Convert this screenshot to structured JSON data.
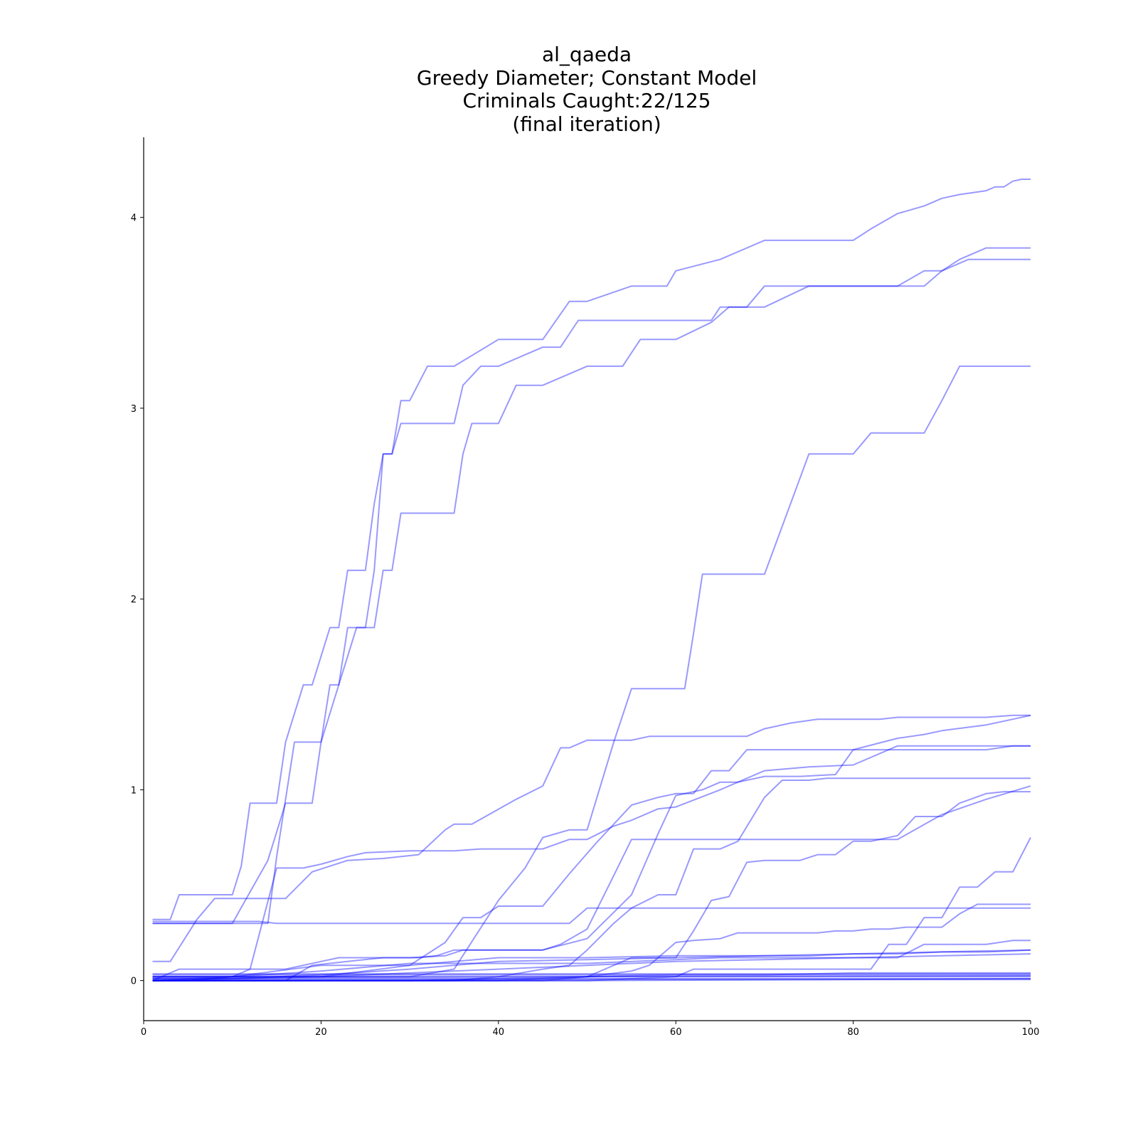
{
  "chart_data": {
    "type": "line",
    "title_lines": [
      "al_qaeda",
      "Greedy Diameter; Constant Model",
      "Criminals Caught:22/125",
      "(final iteration)"
    ],
    "xlim": [
      0,
      100
    ],
    "ylim": [
      -0.21,
      4.42
    ],
    "x_ticks": [
      0,
      20,
      40,
      60,
      80,
      100
    ],
    "y_ticks": [
      0,
      1,
      2,
      3,
      4
    ],
    "grid": false,
    "legend": "none",
    "line_color": "#0000ff",
    "line_opacity": 0.4,
    "series": [
      {
        "x": [
          1,
          3,
          4,
          10,
          11,
          12,
          14,
          15,
          16,
          18,
          19,
          21,
          22,
          23,
          25,
          26,
          27,
          28,
          29,
          30,
          32,
          35,
          40,
          45,
          48,
          50,
          55,
          57,
          59,
          60,
          65,
          67,
          70,
          75,
          80,
          82,
          85,
          88,
          90,
          92,
          95,
          96,
          97,
          98,
          99,
          100
        ],
        "y": [
          0.32,
          0.32,
          0.45,
          0.45,
          0.6,
          0.93,
          0.93,
          0.93,
          1.25,
          1.55,
          1.55,
          1.85,
          1.85,
          2.15,
          2.15,
          2.5,
          2.76,
          2.76,
          3.04,
          3.04,
          3.22,
          3.22,
          3.36,
          3.36,
          3.56,
          3.56,
          3.64,
          3.64,
          3.64,
          3.72,
          3.78,
          3.82,
          3.88,
          3.88,
          3.88,
          3.94,
          4.02,
          4.06,
          4.1,
          4.12,
          4.14,
          4.16,
          4.16,
          4.19,
          4.2,
          4.2
        ]
      },
      {
        "x": [
          1,
          10,
          14,
          16,
          19,
          20,
          21,
          22,
          23,
          24,
          25,
          26,
          27,
          28,
          29,
          30,
          35,
          36,
          38,
          40,
          45,
          47,
          49,
          55,
          60,
          64,
          65,
          70,
          75,
          80,
          85,
          88,
          90,
          93,
          96,
          97,
          98,
          100
        ],
        "y": [
          0.3,
          0.3,
          0.63,
          0.93,
          0.93,
          1.25,
          1.55,
          1.55,
          1.85,
          1.85,
          1.85,
          2.15,
          2.76,
          2.76,
          2.92,
          2.92,
          2.92,
          3.12,
          3.22,
          3.22,
          3.32,
          3.32,
          3.46,
          3.46,
          3.46,
          3.46,
          3.53,
          3.53,
          3.64,
          3.64,
          3.64,
          3.72,
          3.72,
          3.78,
          3.78,
          3.78,
          3.78,
          3.78
        ]
      },
      {
        "x": [
          1,
          5,
          12,
          14,
          15,
          17,
          18,
          20,
          22,
          24,
          26,
          27,
          28,
          29,
          30,
          35,
          36,
          37,
          40,
          42,
          45,
          50,
          54,
          56,
          60,
          64,
          66,
          68,
          70,
          73,
          76,
          80,
          82,
          85,
          88,
          90,
          92,
          95,
          100
        ],
        "y": [
          0.3,
          0.3,
          0.3,
          0.3,
          0.65,
          1.25,
          1.25,
          1.25,
          1.55,
          1.85,
          1.85,
          2.15,
          2.15,
          2.45,
          2.45,
          2.45,
          2.76,
          2.92,
          2.92,
          3.12,
          3.12,
          3.22,
          3.22,
          3.36,
          3.36,
          3.45,
          3.53,
          3.53,
          3.64,
          3.64,
          3.64,
          3.64,
          3.64,
          3.64,
          3.64,
          3.72,
          3.78,
          3.84,
          3.84
        ]
      },
      {
        "x": [
          1,
          10,
          13,
          15,
          20,
          22,
          28,
          30,
          35,
          40,
          45,
          47,
          48,
          50,
          52,
          53,
          55,
          60,
          62,
          63,
          65,
          70,
          75,
          78,
          80,
          83,
          84,
          86,
          89,
          91,
          92,
          95,
          97,
          99,
          100
        ],
        "y": [
          0.31,
          0.31,
          0.31,
          0.3,
          0.3,
          0.3,
          0.3,
          0.3,
          0.3,
          0.3,
          0.3,
          0.3,
          0.3,
          0.38,
          0.38,
          0.38,
          0.38,
          0.38,
          0.38,
          0.38,
          0.38,
          0.38,
          0.38,
          0.38,
          0.38,
          0.38,
          0.38,
          0.38,
          0.38,
          0.38,
          0.38,
          0.38,
          0.38,
          0.38,
          0.38
        ]
      },
      {
        "x": [
          1,
          20,
          30,
          35,
          40,
          43,
          45,
          48,
          50,
          53,
          55,
          60,
          61,
          62,
          63,
          65,
          66,
          67,
          70,
          75,
          80,
          82,
          84,
          86,
          88,
          90,
          92,
          95,
          100
        ],
        "y": [
          0.02,
          0.02,
          0.02,
          0.06,
          0.42,
          0.59,
          0.75,
          0.79,
          0.79,
          1.25,
          1.53,
          1.53,
          1.53,
          1.82,
          2.13,
          2.13,
          2.13,
          2.13,
          2.13,
          2.76,
          2.76,
          2.87,
          2.87,
          2.87,
          2.87,
          3.04,
          3.22,
          3.22,
          3.22
        ]
      },
      {
        "x": [
          1,
          3,
          6,
          8,
          12,
          16,
          19,
          23,
          27,
          31,
          34,
          35,
          37,
          42,
          45,
          47,
          48,
          50,
          55,
          57,
          60,
          62,
          64,
          68,
          70,
          73,
          76,
          80,
          83,
          85,
          87,
          90,
          95,
          98,
          100
        ],
        "y": [
          0.1,
          0.1,
          0.32,
          0.43,
          0.43,
          0.43,
          0.57,
          0.63,
          0.64,
          0.66,
          0.79,
          0.82,
          0.82,
          0.95,
          1.02,
          1.22,
          1.22,
          1.26,
          1.26,
          1.28,
          1.28,
          1.28,
          1.28,
          1.28,
          1.32,
          1.35,
          1.37,
          1.37,
          1.37,
          1.38,
          1.38,
          1.38,
          1.38,
          1.39,
          1.39
        ]
      },
      {
        "x": [
          1,
          5,
          10,
          12,
          14,
          16,
          20,
          22,
          25,
          30,
          34,
          36,
          40,
          42,
          45,
          50,
          55,
          58,
          60,
          63,
          65,
          67,
          70,
          74,
          78,
          80,
          85,
          88,
          90,
          95,
          100
        ],
        "y": [
          0.0,
          0.0,
          0.02,
          0.06,
          0.06,
          0.06,
          0.1,
          0.12,
          0.12,
          0.12,
          0.13,
          0.16,
          0.16,
          0.16,
          0.16,
          0.22,
          0.45,
          0.77,
          0.97,
          1.0,
          1.04,
          1.04,
          1.07,
          1.07,
          1.08,
          1.21,
          1.27,
          1.29,
          1.31,
          1.34,
          1.39
        ]
      },
      {
        "x": [
          1,
          4,
          8,
          12,
          15,
          18,
          20,
          23,
          25,
          30,
          35,
          38,
          40,
          45,
          48,
          50,
          53,
          55,
          58,
          60,
          65,
          70,
          75,
          80,
          85,
          90,
          95,
          100
        ],
        "y": [
          0.0,
          0.06,
          0.06,
          0.06,
          0.59,
          0.59,
          0.61,
          0.65,
          0.67,
          0.68,
          0.68,
          0.69,
          0.69,
          0.69,
          0.74,
          0.74,
          0.81,
          0.84,
          0.9,
          0.91,
          1.0,
          1.1,
          1.12,
          1.13,
          1.23,
          1.23,
          1.23,
          1.23
        ]
      },
      {
        "x": [
          1,
          4,
          10,
          16,
          19,
          23,
          27,
          29,
          31,
          33,
          35,
          38,
          40,
          43,
          45,
          47,
          50,
          53,
          55,
          57,
          60,
          62,
          65,
          68,
          70,
          73,
          75,
          78,
          80,
          85,
          90,
          95,
          100
        ],
        "y": [
          0.0,
          0.0,
          0.0,
          0.0,
          0.08,
          0.1,
          0.12,
          0.12,
          0.12,
          0.13,
          0.16,
          0.16,
          0.16,
          0.16,
          0.16,
          0.19,
          0.27,
          0.55,
          0.74,
          0.74,
          0.74,
          0.74,
          0.74,
          0.74,
          0.74,
          0.74,
          0.74,
          0.74,
          0.74,
          0.74,
          0.87,
          0.95,
          1.02
        ]
      },
      {
        "x": [
          1,
          20,
          30,
          34,
          36,
          38,
          40,
          45,
          48,
          51,
          55,
          58,
          60,
          62,
          64,
          66,
          68,
          72,
          75,
          78,
          80,
          82,
          85,
          88,
          90,
          92,
          95,
          98,
          100
        ],
        "y": [
          0.02,
          0.02,
          0.08,
          0.2,
          0.33,
          0.33,
          0.39,
          0.39,
          0.56,
          0.72,
          0.92,
          0.96,
          0.98,
          0.98,
          1.1,
          1.1,
          1.21,
          1.21,
          1.21,
          1.21,
          1.21,
          1.21,
          1.21,
          1.21,
          1.21,
          1.21,
          1.21,
          1.23,
          1.23
        ]
      },
      {
        "x": [
          1,
          20,
          30,
          35,
          40,
          45,
          48,
          50,
          53,
          55,
          58,
          60,
          62,
          65,
          67,
          70,
          72,
          75,
          77,
          80,
          82,
          85,
          87,
          90,
          93,
          95,
          98,
          100
        ],
        "y": [
          0.0,
          0.0,
          0.0,
          0.0,
          0.02,
          0.06,
          0.08,
          0.16,
          0.3,
          0.38,
          0.45,
          0.45,
          0.69,
          0.69,
          0.73,
          0.96,
          1.05,
          1.05,
          1.06,
          1.06,
          1.06,
          1.06,
          1.06,
          1.06,
          1.06,
          1.06,
          1.06,
          1.06
        ]
      },
      {
        "x": [
          1,
          10,
          20,
          30,
          40,
          45,
          50,
          55,
          60,
          62,
          64,
          66,
          68,
          70,
          72,
          74,
          76,
          78,
          80,
          82,
          85,
          87,
          90,
          92,
          95,
          97,
          100
        ],
        "y": [
          0.0,
          0.0,
          0.0,
          0.0,
          0.0,
          0.0,
          0.02,
          0.12,
          0.12,
          0.26,
          0.42,
          0.44,
          0.62,
          0.63,
          0.63,
          0.63,
          0.66,
          0.66,
          0.73,
          0.73,
          0.76,
          0.86,
          0.86,
          0.93,
          0.98,
          0.99,
          0.99
        ]
      },
      {
        "x": [
          1,
          10,
          20,
          30,
          40,
          50,
          55,
          57,
          60,
          62,
          65,
          67,
          70,
          72,
          74,
          76,
          78,
          80,
          82,
          84,
          86,
          88,
          90,
          92,
          94,
          96,
          98,
          100
        ],
        "y": [
          0.0,
          0.0,
          0.0,
          0.0,
          0.0,
          0.02,
          0.05,
          0.08,
          0.2,
          0.21,
          0.22,
          0.25,
          0.25,
          0.25,
          0.25,
          0.25,
          0.26,
          0.26,
          0.27,
          0.27,
          0.28,
          0.28,
          0.28,
          0.35,
          0.4,
          0.4,
          0.4,
          0.4
        ]
      },
      {
        "x": [
          1,
          10,
          20,
          30,
          40,
          50,
          60,
          62,
          65,
          67,
          70,
          75,
          80,
          82,
          84,
          86,
          88,
          90,
          92,
          94,
          96,
          98,
          100
        ],
        "y": [
          0.0,
          0.0,
          0.0,
          0.0,
          0.0,
          0.0,
          0.02,
          0.06,
          0.06,
          0.06,
          0.06,
          0.06,
          0.06,
          0.06,
          0.19,
          0.19,
          0.33,
          0.33,
          0.49,
          0.49,
          0.57,
          0.57,
          0.75
        ]
      },
      {
        "x": [
          1,
          10,
          20,
          30,
          40,
          50,
          60,
          65,
          70,
          75,
          80,
          85,
          90,
          95,
          100
        ],
        "y": [
          0.02,
          0.02,
          0.08,
          0.08,
          0.12,
          0.12,
          0.13,
          0.13,
          0.13,
          0.13,
          0.14,
          0.14,
          0.15,
          0.15,
          0.16
        ]
      },
      {
        "x": [
          1,
          10,
          20,
          30,
          40,
          50,
          60,
          65,
          70,
          75,
          80,
          85,
          88,
          90,
          95,
          98,
          100
        ],
        "y": [
          0.0,
          0.02,
          0.05,
          0.09,
          0.09,
          0.09,
          0.11,
          0.12,
          0.12,
          0.12,
          0.12,
          0.12,
          0.19,
          0.19,
          0.19,
          0.21,
          0.21
        ]
      },
      {
        "x": [
          1,
          10,
          20,
          30,
          40,
          50,
          60,
          70,
          80,
          90,
          100
        ],
        "y": [
          0.01,
          0.01,
          0.03,
          0.06,
          0.1,
          0.11,
          0.12,
          0.13,
          0.14,
          0.15,
          0.16
        ]
      },
      {
        "x": [
          1,
          10,
          20,
          30,
          40,
          50,
          60,
          70,
          80,
          90,
          100
        ],
        "y": [
          0.0,
          0.01,
          0.02,
          0.04,
          0.06,
          0.08,
          0.1,
          0.11,
          0.12,
          0.13,
          0.14
        ]
      },
      {
        "x": [
          1,
          20,
          30,
          40,
          50,
          60,
          70,
          80,
          90,
          100
        ],
        "y": [
          0.03,
          0.03,
          0.03,
          0.03,
          0.03,
          0.03,
          0.03,
          0.04,
          0.04,
          0.04
        ]
      },
      {
        "x": [
          1,
          20,
          30,
          40,
          50,
          60,
          70,
          80,
          90,
          100
        ],
        "y": [
          0.02,
          0.02,
          0.02,
          0.02,
          0.02,
          0.03,
          0.03,
          0.03,
          0.03,
          0.03
        ]
      },
      {
        "x": [
          1,
          20,
          30,
          40,
          50,
          60,
          70,
          80,
          90,
          100
        ],
        "y": [
          0.01,
          0.01,
          0.01,
          0.01,
          0.02,
          0.02,
          0.02,
          0.02,
          0.02,
          0.02
        ]
      },
      {
        "x": [
          1,
          20,
          30,
          40,
          50,
          60,
          70,
          80,
          90,
          100
        ],
        "y": [
          0.0,
          0.0,
          0.0,
          0.01,
          0.01,
          0.01,
          0.01,
          0.01,
          0.01,
          0.01
        ]
      },
      {
        "x": [
          1,
          50,
          100
        ],
        "y": [
          0.0,
          0.0,
          0.01
        ]
      },
      {
        "x": [
          1,
          50,
          100
        ],
        "y": [
          0.005,
          0.005,
          0.005
        ]
      },
      {
        "x": [
          1,
          50,
          100
        ],
        "y": [
          0.015,
          0.02,
          0.025
        ]
      },
      {
        "x": [
          1,
          50,
          100
        ],
        "y": [
          0.035,
          0.035,
          0.035
        ]
      }
    ]
  }
}
